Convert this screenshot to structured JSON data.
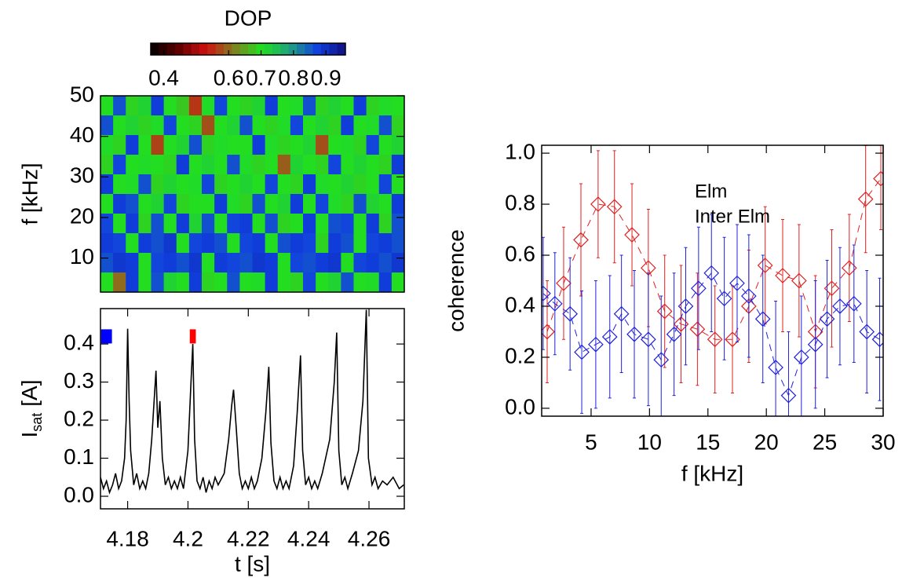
{
  "chart_data": [
    {
      "type": "heatmap",
      "ylabel": "f [kHz]",
      "xlim": [
        4.171,
        4.2717
      ],
      "ylim": [
        1.6,
        50
      ],
      "yticks": [
        10,
        20,
        30,
        40,
        50
      ],
      "colorbar": {
        "label": "DOP",
        "lim": [
          0.36,
          0.96
        ],
        "ticks": [
          0.4,
          0.6,
          0.7,
          0.8,
          0.9
        ],
        "colors": [
          "#000000",
          "#600000",
          "#d01010",
          "#808020",
          "#20e020",
          "#20a080",
          "#1040e0",
          "#101080"
        ]
      },
      "z": [
        [
          0.7,
          0.86,
          0.69,
          0.72,
          0.88,
          0.7,
          0.68,
          0.56,
          0.71,
          0.87,
          0.7,
          0.69,
          0.72,
          0.88,
          0.7,
          0.71,
          0.86,
          0.69,
          0.72,
          0.7,
          0.88,
          0.69,
          0.71,
          0.7
        ],
        [
          0.86,
          0.7,
          0.72,
          0.69,
          0.71,
          0.87,
          0.7,
          0.69,
          0.58,
          0.7,
          0.72,
          0.86,
          0.7,
          0.69,
          0.71,
          0.87,
          0.7,
          0.72,
          0.69,
          0.88,
          0.7,
          0.71,
          0.86,
          0.69
        ],
        [
          0.71,
          0.69,
          0.88,
          0.7,
          0.57,
          0.7,
          0.72,
          0.86,
          0.69,
          0.71,
          0.7,
          0.7,
          0.88,
          0.71,
          0.69,
          0.7,
          0.72,
          0.58,
          0.7,
          0.71,
          0.69,
          0.87,
          0.7,
          0.72
        ],
        [
          0.69,
          0.87,
          0.7,
          0.71,
          0.7,
          0.69,
          0.88,
          0.7,
          0.72,
          0.7,
          0.86,
          0.71,
          0.69,
          0.7,
          0.59,
          0.72,
          0.7,
          0.69,
          0.87,
          0.7,
          0.72,
          0.7,
          0.69,
          0.88
        ],
        [
          0.88,
          0.7,
          0.71,
          0.86,
          0.69,
          0.72,
          0.7,
          0.71,
          0.87,
          0.69,
          0.7,
          0.72,
          0.7,
          0.87,
          0.7,
          0.69,
          0.88,
          0.71,
          0.7,
          0.72,
          0.69,
          0.7,
          0.87,
          0.7
        ],
        [
          0.7,
          0.88,
          0.86,
          0.7,
          0.72,
          0.87,
          0.69,
          0.7,
          0.7,
          0.88,
          0.71,
          0.69,
          0.86,
          0.7,
          0.72,
          0.88,
          0.7,
          0.87,
          0.71,
          0.69,
          0.86,
          0.72,
          0.7,
          0.88
        ],
        [
          0.87,
          0.7,
          0.88,
          0.69,
          0.86,
          0.7,
          0.88,
          0.72,
          0.86,
          0.7,
          0.87,
          0.88,
          0.7,
          0.86,
          0.69,
          0.7,
          0.88,
          0.7,
          0.86,
          0.87,
          0.7,
          0.88,
          0.69,
          0.86
        ],
        [
          0.88,
          0.87,
          0.7,
          0.88,
          0.86,
          0.89,
          0.7,
          0.87,
          0.88,
          0.86,
          0.7,
          0.87,
          0.88,
          0.7,
          0.86,
          0.88,
          0.87,
          0.69,
          0.88,
          0.86,
          0.7,
          0.87,
          0.88,
          0.86
        ],
        [
          0.86,
          0.89,
          0.88,
          0.7,
          0.87,
          0.88,
          0.86,
          0.89,
          0.7,
          0.88,
          0.87,
          0.86,
          0.89,
          0.88,
          0.7,
          0.87,
          0.86,
          0.88,
          0.89,
          0.7,
          0.87,
          0.88,
          0.86,
          0.89
        ],
        [
          0.7,
          0.6,
          0.88,
          0.7,
          0.86,
          0.72,
          0.7,
          0.88,
          0.69,
          0.7,
          0.86,
          0.7,
          0.71,
          0.88,
          0.7,
          0.69,
          0.87,
          0.7,
          0.72,
          0.86,
          0.7,
          0.71,
          0.88,
          0.7
        ]
      ]
    },
    {
      "type": "line",
      "xlabel": "t [s]",
      "ylabel": {
        "main": "I",
        "sub": "sat",
        "suffix": "[A]"
      },
      "xlim": [
        4.171,
        4.2717
      ],
      "ylim": [
        -0.033,
        0.493
      ],
      "xticks": [
        4.18,
        4.2,
        4.22,
        4.24,
        4.26
      ],
      "yticks": [
        {
          "value": 0,
          "label": "0.0"
        },
        0.1,
        0.2,
        0.3,
        0.4
      ],
      "color": "#000000",
      "spans": [
        {
          "color": "#0000ff",
          "x": [
            4.1712,
            4.1748
          ],
          "y": 0.42
        },
        {
          "color": "#ff0000",
          "x": [
            4.2006,
            4.2026
          ],
          "y": 0.42
        }
      ],
      "x": [
        4.171,
        4.172,
        4.173,
        4.174,
        4.175,
        4.176,
        4.177,
        4.178,
        4.179,
        4.1795,
        4.18,
        4.1805,
        4.181,
        4.182,
        4.183,
        4.184,
        4.185,
        4.186,
        4.187,
        4.188,
        4.1894,
        4.19,
        4.1907,
        4.1915,
        4.1925,
        4.1935,
        4.1945,
        4.1955,
        4.1965,
        4.1975,
        4.1985,
        4.2,
        4.201,
        4.2016,
        4.2022,
        4.203,
        4.204,
        4.205,
        4.206,
        4.207,
        4.208,
        4.209,
        4.21,
        4.212,
        4.2135,
        4.2145,
        4.2151,
        4.216,
        4.217,
        4.218,
        4.219,
        4.22,
        4.221,
        4.222,
        4.223,
        4.2245,
        4.2258,
        4.2268,
        4.2275,
        4.2285,
        4.2295,
        4.2305,
        4.2315,
        4.2325,
        4.2335,
        4.235,
        4.2362,
        4.2373,
        4.238,
        4.239,
        4.24,
        4.241,
        4.242,
        4.243,
        4.2445,
        4.247,
        4.2485,
        4.2493,
        4.25,
        4.251,
        4.252,
        4.253,
        4.2545,
        4.2565,
        4.258,
        4.2591,
        4.2598,
        4.261,
        4.262,
        4.263,
        4.2645,
        4.266,
        4.268,
        4.27,
        4.2715
      ],
      "values": [
        0.05,
        0.02,
        0.04,
        0.01,
        0.03,
        0.06,
        0.02,
        0.04,
        0.1,
        0.2,
        0.44,
        0.25,
        0.12,
        0.03,
        0.06,
        0.02,
        0.04,
        0.02,
        0.06,
        0.15,
        0.33,
        0.18,
        0.25,
        0.1,
        0.03,
        0.05,
        0.02,
        0.04,
        0.02,
        0.05,
        0.02,
        0.12,
        0.3,
        0.4,
        0.15,
        0.04,
        0.02,
        0.05,
        0.01,
        0.04,
        0.02,
        0.05,
        0.03,
        0.06,
        0.15,
        0.24,
        0.28,
        0.18,
        0.06,
        0.02,
        0.04,
        0.02,
        0.05,
        0.02,
        0.04,
        0.1,
        0.22,
        0.34,
        0.14,
        0.04,
        0.02,
        0.05,
        0.02,
        0.04,
        0.02,
        0.08,
        0.22,
        0.37,
        0.12,
        0.03,
        0.05,
        0.02,
        0.04,
        0.02,
        0.06,
        0.15,
        0.3,
        0.43,
        0.12,
        0.03,
        0.05,
        0.02,
        0.06,
        0.12,
        0.25,
        0.49,
        0.1,
        0.03,
        0.05,
        0.02,
        0.04,
        0.03,
        0.05,
        0.02,
        0.03
      ]
    },
    {
      "type": "errorbar",
      "xlabel": "f [kHz]",
      "ylabel": "coherence",
      "xlim": [
        0.77,
        30
      ],
      "ylim": [
        -0.031,
        1.031
      ],
      "xticks": [
        5,
        10,
        15,
        20,
        25,
        30
      ],
      "yticks": [
        {
          "value": 0,
          "label": "0.0"
        },
        0.2,
        0.4,
        0.6,
        0.8,
        {
          "value": 1,
          "label": "1.0"
        }
      ],
      "series": [
        {
          "name": "Elm",
          "color": "#e02020",
          "x": [
            1.24,
            2.65,
            4.13,
            5.6,
            7.0,
            8.5,
            9.9,
            11.3,
            12.7,
            14.1,
            15.6,
            17.1,
            18.5,
            19.9,
            21.4,
            22.8,
            24.2,
            25.6,
            27.1,
            28.5,
            29.8
          ],
          "values": [
            0.3,
            0.49,
            0.66,
            0.8,
            0.79,
            0.68,
            0.55,
            0.38,
            0.33,
            0.31,
            0.27,
            0.27,
            0.4,
            0.56,
            0.52,
            0.5,
            0.3,
            0.47,
            0.55,
            0.82,
            0.9
          ],
          "errors": [
            0.2,
            0.22,
            0.22,
            0.21,
            0.22,
            0.2,
            0.23,
            0.22,
            0.23,
            0.22,
            0.21,
            0.21,
            0.22,
            0.23,
            0.22,
            0.22,
            0.22,
            0.23,
            0.21,
            0.21,
            0.2
          ]
        },
        {
          "name": "Inter Elm",
          "color": "#2020e0",
          "x": [
            0.9,
            1.9,
            3.2,
            4.2,
            5.4,
            6.6,
            7.6,
            8.7,
            9.9,
            11.0,
            12.1,
            13.1,
            14.2,
            15.3,
            16.4,
            17.5,
            18.5,
            19.7,
            20.8,
            21.9,
            23.0,
            24.2,
            25.2,
            26.3,
            27.5,
            28.6,
            29.7
          ],
          "values": [
            0.45,
            0.41,
            0.37,
            0.22,
            0.25,
            0.28,
            0.37,
            0.29,
            0.27,
            0.19,
            0.29,
            0.4,
            0.47,
            0.53,
            0.43,
            0.49,
            0.44,
            0.35,
            0.16,
            0.05,
            0.2,
            0.25,
            0.35,
            0.4,
            0.41,
            0.3,
            0.27
          ],
          "errors": [
            0.22,
            0.2,
            0.22,
            0.24,
            0.25,
            0.24,
            0.23,
            0.25,
            0.26,
            0.25,
            0.24,
            0.23,
            0.24,
            0.23,
            0.24,
            0.23,
            0.24,
            0.25,
            0.26,
            0.25,
            0.24,
            0.25,
            0.23,
            0.23,
            0.23,
            0.24,
            0.24
          ]
        }
      ]
    }
  ]
}
